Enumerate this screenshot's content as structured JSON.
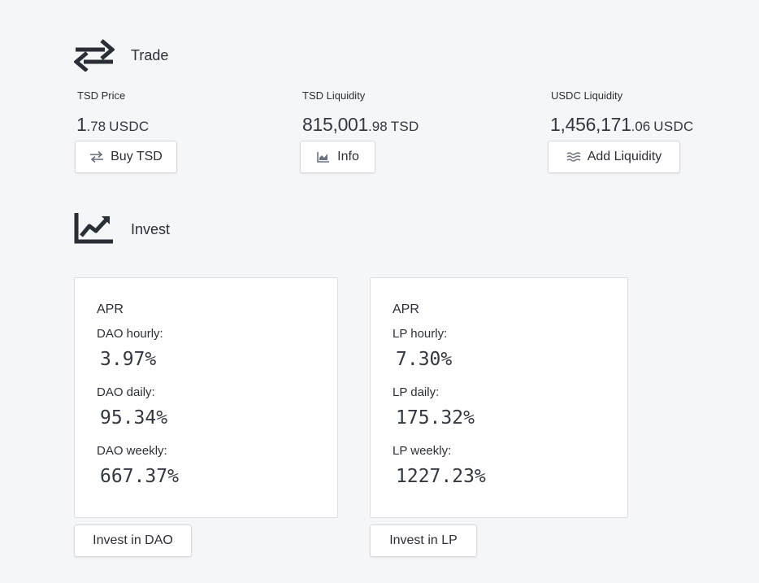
{
  "trade": {
    "title": "Trade",
    "icon": "swap-arrows-icon",
    "stats": [
      {
        "label": "TSD Price",
        "int": "1",
        "dec": ".78",
        "unit": "USDC",
        "button": "Buy TSD",
        "button_icon": "swap-icon"
      },
      {
        "label": "TSD Liquidity",
        "int": "815,001",
        "dec": ".98",
        "unit": "TSD",
        "button": "Info",
        "button_icon": "chart-icon"
      },
      {
        "label": "USDC Liquidity",
        "int": "1,456,171",
        "dec": ".06",
        "unit": "USDC",
        "button": "Add Liquidity",
        "button_icon": "waves-icon"
      }
    ]
  },
  "invest": {
    "title": "Invest",
    "icon": "trend-chart-icon",
    "cards": [
      {
        "apr_label": "APR",
        "rows": [
          {
            "label": "DAO hourly:",
            "value": "3.97%"
          },
          {
            "label": "DAO daily:",
            "value": "95.34%"
          },
          {
            "label": "DAO weekly:",
            "value": "667.37%"
          }
        ],
        "button": "Invest in DAO"
      },
      {
        "apr_label": "APR",
        "rows": [
          {
            "label": "LP hourly:",
            "value": "7.30%"
          },
          {
            "label": "LP daily:",
            "value": "175.32%"
          },
          {
            "label": "LP weekly:",
            "value": "1227.23%"
          }
        ],
        "button": "Invest in LP"
      }
    ]
  }
}
